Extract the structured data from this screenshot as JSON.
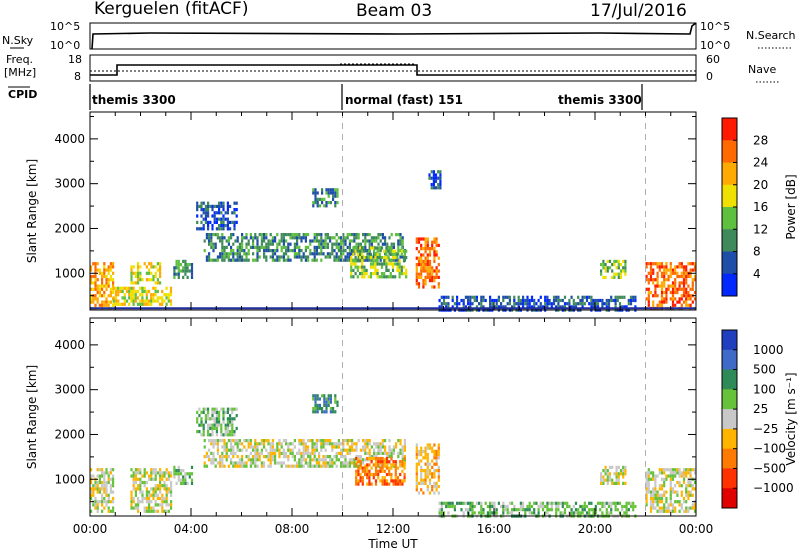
{
  "header": {
    "radar": "Kerguelen (fitACF)",
    "beam": "Beam 03",
    "date": "17/Jul/2016"
  },
  "strip_labels": {
    "nsky": "N.Sky",
    "nsearch": "N.Search",
    "freq": "Freq.",
    "freq_unit": "[MHz]",
    "nave": "Nave",
    "cpid": "CPID",
    "tick_1e5": "10^5",
    "tick_1e0": "10^0",
    "freq_18": "18",
    "freq_8": "8",
    "nave_60": "60",
    "nave_0": "0"
  },
  "cpid_segments": [
    {
      "label": "themis 3300",
      "start_hour": 0,
      "end_hour": 10
    },
    {
      "label": "normal (fast) 151",
      "start_hour": 10,
      "end_hour": 22
    },
    {
      "label": "themis 3300",
      "start_hour": 22,
      "end_hour": 24
    }
  ],
  "chart_data": [
    {
      "type": "heatmap",
      "name": "power",
      "ylabel": "Slant Range [km]",
      "x_ticks": [
        "00:00",
        "04:00",
        "08:00",
        "12:00",
        "16:00",
        "20:00",
        "00:00"
      ],
      "y_ticks": [
        1000,
        2000,
        3000,
        4000
      ],
      "xlim_hours": [
        0,
        24
      ],
      "ylim_km": [
        180,
        4600
      ],
      "colorbar": {
        "label": "Power [dB]",
        "ticks": [
          "4",
          "8",
          "12",
          "16",
          "20",
          "24",
          "28"
        ],
        "colors": [
          "#0028ff",
          "#1f4ea8",
          "#3f8a5a",
          "#5fbf3f",
          "#f0e000",
          "#ffaa00",
          "#ff6a00",
          "#ff1a00"
        ]
      },
      "echo_regions": [
        {
          "t0": 0.0,
          "t1": 0.9,
          "r0": 200,
          "r1": 1250,
          "level": 5
        },
        {
          "t0": 0.9,
          "t1": 3.2,
          "r0": 300,
          "r1": 700,
          "level": 4
        },
        {
          "t0": 1.6,
          "t1": 2.8,
          "r0": 800,
          "r1": 1250,
          "level": 4
        },
        {
          "t0": 3.3,
          "t1": 4.0,
          "r0": 900,
          "r1": 1300,
          "level": 2
        },
        {
          "t0": 4.2,
          "t1": 5.8,
          "r0": 2000,
          "r1": 2600,
          "level": 1
        },
        {
          "t0": 4.5,
          "t1": 12.5,
          "r0": 1300,
          "r1": 1900,
          "level": 2
        },
        {
          "t0": 8.8,
          "t1": 9.8,
          "r0": 2500,
          "r1": 2900,
          "level": 2
        },
        {
          "t0": 10.3,
          "t1": 12.5,
          "r0": 900,
          "r1": 1600,
          "level": 3
        },
        {
          "t0": 12.9,
          "t1": 13.8,
          "r0": 700,
          "r1": 1800,
          "level": 6
        },
        {
          "t0": 13.4,
          "t1": 13.9,
          "r0": 2900,
          "r1": 3300,
          "level": 1
        },
        {
          "t0": 13.8,
          "t1": 21.6,
          "r0": 200,
          "r1": 500,
          "level": 1
        },
        {
          "t0": 20.2,
          "t1": 21.2,
          "r0": 900,
          "r1": 1300,
          "level": 3
        },
        {
          "t0": 22.0,
          "t1": 24.0,
          "r0": 200,
          "r1": 1250,
          "level": 6
        }
      ],
      "ground_line_km": 220
    },
    {
      "type": "heatmap",
      "name": "velocity",
      "ylabel": "Slant Range [km]",
      "xlabel": "Time UT",
      "x_ticks": [
        "00:00",
        "04:00",
        "08:00",
        "12:00",
        "16:00",
        "20:00",
        "00:00"
      ],
      "y_ticks": [
        1000,
        2000,
        3000,
        4000
      ],
      "xlim_hours": [
        0,
        24
      ],
      "ylim_km": [
        180,
        4600
      ],
      "colorbar": {
        "label": "Velocity [m s⁻¹]",
        "ticks": [
          "1000",
          "500",
          "100",
          "25",
          "−25",
          "−100",
          "−500",
          "−1000"
        ],
        "colors": [
          "#1f3fbf",
          "#3f6ac8",
          "#2e8b57",
          "#66c23a",
          "#c8c8c8",
          "#ffb400",
          "#ff7a00",
          "#ff3200",
          "#e00000"
        ]
      },
      "echo_regions": [
        {
          "t0": 0.0,
          "t1": 0.9,
          "r0": 300,
          "r1": 1250,
          "level": 4
        },
        {
          "t0": 1.6,
          "t1": 3.2,
          "r0": 300,
          "r1": 1250,
          "level": 4
        },
        {
          "t0": 3.3,
          "t1": 4.0,
          "r0": 900,
          "r1": 1300,
          "level": 3
        },
        {
          "t0": 4.2,
          "t1": 5.8,
          "r0": 2000,
          "r1": 2600,
          "level": 3
        },
        {
          "t0": 4.5,
          "t1": 12.5,
          "r0": 1300,
          "r1": 1900,
          "level": 4
        },
        {
          "t0": 8.8,
          "t1": 9.8,
          "r0": 2500,
          "r1": 2900,
          "level": 2
        },
        {
          "t0": 10.5,
          "t1": 12.5,
          "r0": 900,
          "r1": 1500,
          "level": 6
        },
        {
          "t0": 12.9,
          "t1": 13.8,
          "r0": 700,
          "r1": 1800,
          "level": 5
        },
        {
          "t0": 13.8,
          "t1": 21.6,
          "r0": 200,
          "r1": 500,
          "level": 3
        },
        {
          "t0": 20.2,
          "t1": 21.2,
          "r0": 900,
          "r1": 1300,
          "level": 4
        },
        {
          "t0": 22.0,
          "t1": 24.0,
          "r0": 300,
          "r1": 1250,
          "level": 4
        }
      ]
    }
  ]
}
